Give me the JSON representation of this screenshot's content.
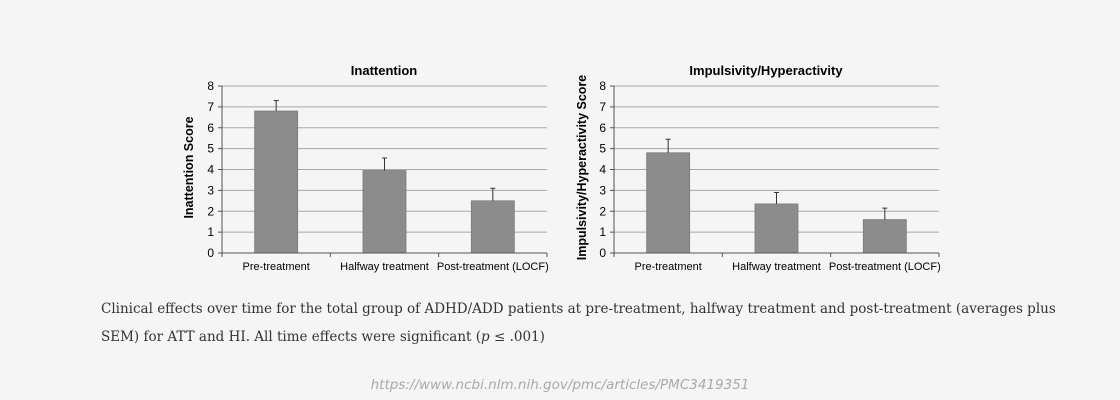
{
  "chart_data": [
    {
      "type": "bar",
      "title": "Inattention",
      "xlabel": "",
      "ylabel": "Inattention Score",
      "categories": [
        "Pre-treatment",
        "Halfway treatment",
        "Post-treatment (LOCF)"
      ],
      "values": [
        6.8,
        3.95,
        2.5
      ],
      "errors": [
        0.5,
        0.6,
        0.6
      ],
      "ylim": [
        0,
        8
      ],
      "yticks": [
        "0",
        "1",
        "2",
        "3",
        "4",
        "5",
        "6",
        "7",
        "8"
      ],
      "grid": true
    },
    {
      "type": "bar",
      "title": "Impulsivity/Hyperactivity",
      "xlabel": "",
      "ylabel": "Impulsivity/Hyperactivity Score",
      "categories": [
        "Pre-treatment",
        "Halfway treatment",
        "Post-treatment (LOCF)"
      ],
      "values": [
        4.8,
        2.35,
        1.6
      ],
      "errors": [
        0.65,
        0.55,
        0.55
      ],
      "ylim": [
        0,
        8
      ],
      "yticks": [
        "0",
        "1",
        "2",
        "3",
        "4",
        "5",
        "6",
        "7",
        "8"
      ],
      "grid": true
    }
  ],
  "colors": {
    "bar": "#8c8c8c",
    "bar_edge": "#7a7a7a",
    "grid": "#a8a8a8",
    "axis": "#555555",
    "text": "#000000"
  },
  "caption": {
    "text_before": "Clinical effects over time for the total group of ADHD/ADD patients at pre-treatment, halfway treatment and post-treatment (averages plus SEM) for ATT and HI. All time effects were significant (",
    "italic": "p",
    "text_after": " ≤ .001)"
  },
  "source_url": "https://www.ncbi.nlm.nih.gov/pmc/articles/PMC3419351"
}
